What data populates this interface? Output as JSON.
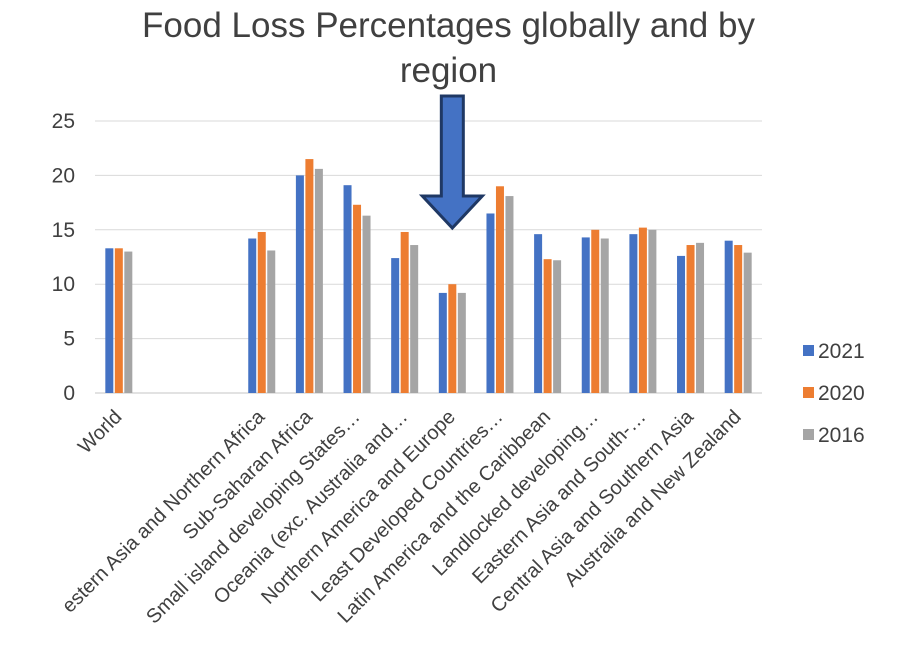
{
  "chart_data": {
    "type": "bar",
    "title_lines": [
      "Food Loss Percentages globally and by",
      "region"
    ],
    "categories": [
      "World",
      "",
      "",
      "estern Asia and Northern Africa",
      "Sub-Saharan Africa",
      "Small island developing States…",
      "Oceania (exc. Australia and…",
      "Northern America and Europe",
      "Least Developed Countries…",
      "Latin America and the Caribbean",
      "Landlocked developing…",
      "Eastern Asia and South-…",
      "Central Asia and Southern Asia",
      "Australia and New Zealand"
    ],
    "series": [
      {
        "name": "2021",
        "color": "#4472C4",
        "values": [
          13.3,
          null,
          null,
          14.2,
          20.0,
          19.1,
          12.4,
          9.2,
          16.5,
          14.6,
          14.3,
          14.6,
          12.6,
          14.0
        ]
      },
      {
        "name": "2020",
        "color": "#ED7D31",
        "values": [
          13.3,
          null,
          null,
          14.8,
          21.5,
          17.3,
          14.8,
          10.0,
          19.0,
          12.3,
          15.0,
          15.2,
          13.6,
          13.6
        ]
      },
      {
        "name": "2016",
        "color": "#A5A5A5",
        "values": [
          13.0,
          null,
          null,
          13.1,
          20.6,
          16.3,
          13.6,
          9.2,
          18.1,
          12.2,
          14.2,
          15.0,
          13.8,
          12.9
        ]
      }
    ],
    "ylim": [
      0,
      25
    ],
    "yticks": [
      "0",
      "5",
      "10",
      "15",
      "20",
      "25"
    ],
    "grid": true,
    "legend_position": "right",
    "annotation": {
      "type": "down-arrow",
      "color": "#4472C4",
      "outline": "#1F3864",
      "points_to": "Northern America and Europe"
    }
  }
}
